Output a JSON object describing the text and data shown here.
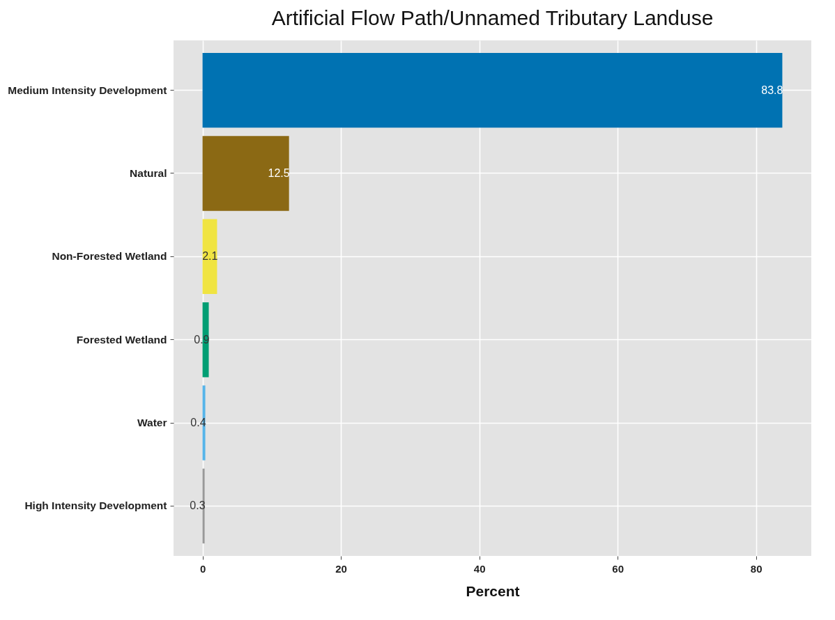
{
  "chart_data": {
    "type": "bar",
    "orientation": "horizontal",
    "title": "Artificial Flow Path/Unnamed Tributary Landuse",
    "xlabel": "Percent",
    "categories": [
      "Medium Intensity Development",
      "Natural",
      "Non-Forested Wetland",
      "Forested Wetland",
      "Water",
      "High Intensity Development"
    ],
    "values": [
      83.8,
      12.5,
      2.1,
      0.9,
      0.4,
      0.3
    ],
    "colors": [
      "#0072b2",
      "#8b6914",
      "#f0e442",
      "#009e73",
      "#56b4e9",
      "#999999"
    ],
    "xlim": [
      -4.19,
      87.99
    ],
    "xticks": [
      0,
      20,
      40,
      60,
      80
    ],
    "grid": true,
    "data_labels": true
  }
}
